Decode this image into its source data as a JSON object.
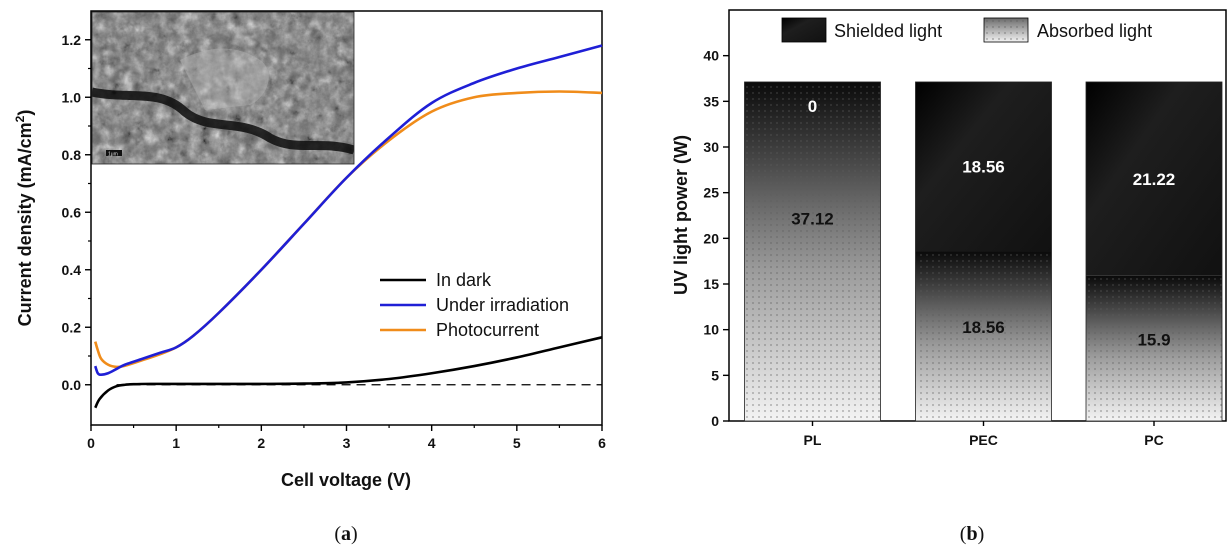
{
  "chart_data": [
    {
      "type": "line",
      "caption": {
        "open": "(",
        "letter": "a",
        "close": ")"
      },
      "xlabel": "Cell voltage (V)",
      "ylabel": "Current density (mA/cm",
      "ylabel_sup": "2",
      "ylabel_close": ")",
      "xlim": [
        0,
        6
      ],
      "ylim": [
        -0.14,
        1.3
      ],
      "xticks": [
        "0",
        "1",
        "2",
        "3",
        "4",
        "5",
        "6"
      ],
      "yticks": [
        "0.0",
        "0.2",
        "0.4",
        "0.6",
        "0.8",
        "1.0",
        "1.2"
      ],
      "legend_position": "bottom-right",
      "inset": "sem-micrograph",
      "inset_scale_label": "1μm",
      "reference_line": {
        "y": 0,
        "style": "dashed"
      },
      "series": [
        {
          "name": "In dark",
          "color": "#000000",
          "x": [
            0.05,
            0.1,
            0.2,
            0.3,
            0.4,
            0.5,
            0.7,
            1.0,
            1.5,
            2.0,
            2.5,
            3.0,
            3.5,
            4.0,
            4.5,
            5.0,
            5.5,
            6.0
          ],
          "y": [
            -0.08,
            -0.05,
            -0.02,
            -0.005,
            0.0,
            0.002,
            0.003,
            0.003,
            0.003,
            0.003,
            0.004,
            0.008,
            0.02,
            0.04,
            0.065,
            0.095,
            0.13,
            0.165
          ]
        },
        {
          "name": "Under irradiation",
          "color": "#1f1fd6",
          "x": [
            0.05,
            0.08,
            0.12,
            0.2,
            0.3,
            0.4,
            0.6,
            0.8,
            1.0,
            1.2,
            1.5,
            2.0,
            2.5,
            3.0,
            3.5,
            4.0,
            4.5,
            5.0,
            5.5,
            6.0
          ],
          "y": [
            0.065,
            0.04,
            0.035,
            0.04,
            0.055,
            0.07,
            0.09,
            0.11,
            0.13,
            0.17,
            0.25,
            0.4,
            0.56,
            0.72,
            0.86,
            0.98,
            1.05,
            1.1,
            1.14,
            1.18
          ]
        },
        {
          "name": "Photocurrent",
          "color": "#f08c1a",
          "x": [
            0.05,
            0.08,
            0.12,
            0.2,
            0.3,
            0.4,
            0.6,
            0.8,
            1.0,
            1.2,
            1.5,
            2.0,
            2.5,
            3.0,
            3.5,
            4.0,
            4.5,
            5.0,
            5.5,
            6.0
          ],
          "y": [
            0.15,
            0.12,
            0.09,
            0.07,
            0.062,
            0.066,
            0.085,
            0.105,
            0.13,
            0.17,
            0.25,
            0.4,
            0.56,
            0.72,
            0.85,
            0.95,
            1.0,
            1.015,
            1.02,
            1.015
          ]
        }
      ]
    },
    {
      "type": "bar",
      "stacked": true,
      "caption": {
        "open": "(",
        "letter": "b",
        "close": ")"
      },
      "ylabel": "UV light power (W)",
      "ylim": [
        0,
        45
      ],
      "yticks": [
        "0",
        "5",
        "10",
        "15",
        "20",
        "25",
        "30",
        "35",
        "40"
      ],
      "categories": [
        "PL",
        "PEC",
        "PC"
      ],
      "legend_position": "top",
      "series": [
        {
          "name": "Absorbed light",
          "style": "gradient-dots",
          "values": [
            37.12,
            18.56,
            15.9
          ],
          "labels": [
            "37.12",
            "18.56",
            "15.9"
          ]
        },
        {
          "name": "Shielded light",
          "style": "solid-dark",
          "values": [
            0,
            18.56,
            21.22
          ],
          "labels": [
            "0",
            "18.56",
            "21.22"
          ]
        }
      ]
    }
  ]
}
